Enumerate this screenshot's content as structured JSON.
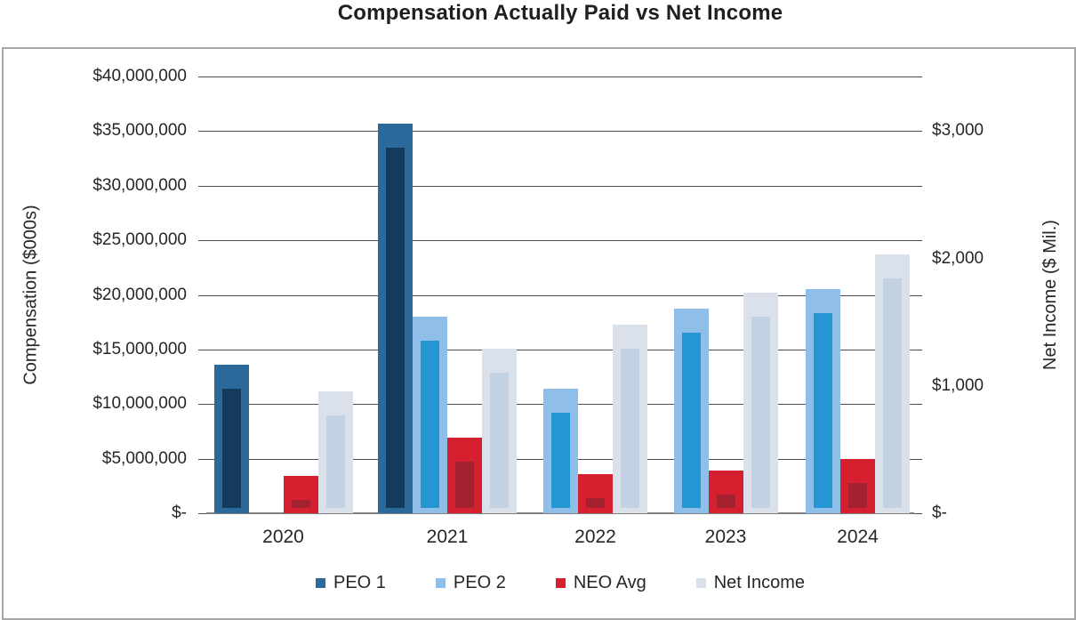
{
  "chart_data": {
    "type": "bar",
    "title": "Compensation Actually Paid vs Net Income",
    "categories": [
      "2020",
      "2021",
      "2022",
      "2023",
      "2024"
    ],
    "left_axis": {
      "title": "Compensation ($000s)",
      "min": 0,
      "max": 40000000,
      "tick_interval": 5000000,
      "tick_labels": [
        "$40,000,000",
        "$35,000,000",
        "$30,000,000",
        "$25,000,000",
        "$20,000,000",
        "$15,000,000",
        "$10,000,000",
        "$5,000,000",
        "$-"
      ]
    },
    "right_axis": {
      "title": "Net Income ($ Mil.)",
      "ticks": [
        {
          "label": "$3,000",
          "value": 3000
        },
        {
          "label": "$2,000",
          "value": 2000
        },
        {
          "label": "$1,000",
          "value": 1000
        },
        {
          "label": "$-",
          "value": 0
        }
      ],
      "alignment_note": "$3,000 on right axis aligns with $35,000,000 gridline on left axis"
    },
    "series": [
      {
        "name": "PEO 1",
        "axis": "left",
        "color": "#2B6A9B",
        "inner_color": "#143A5E",
        "values": [
          13600000,
          35700000,
          null,
          null,
          null
        ]
      },
      {
        "name": "PEO 2",
        "axis": "left",
        "color": "#8FBEE8",
        "inner_color": "#2496D2",
        "values": [
          null,
          18000000,
          11400000,
          18700000,
          20500000
        ]
      },
      {
        "name": "NEO Avg",
        "axis": "left",
        "color": "#D7202F",
        "inner_color": "#A42130",
        "values": [
          3400000,
          6900000,
          3600000,
          3900000,
          5000000
        ]
      },
      {
        "name": "Net Income",
        "axis": "right",
        "color": "#DAE1EB",
        "inner_color": "#C3D2E3",
        "values": [
          960,
          1290,
          1480,
          1730,
          2030
        ]
      }
    ],
    "legend": {
      "position": "bottom",
      "items": [
        "PEO 1",
        "PEO 2",
        "NEO Avg",
        "Net Income"
      ]
    },
    "grid": true,
    "style": {
      "gridline_color": "#4D4D4D",
      "baseline_color": "#7F7F7F",
      "frame_border_color": "#A6A6A6",
      "text_color": "#262626",
      "background": "#FFFFFF"
    }
  }
}
